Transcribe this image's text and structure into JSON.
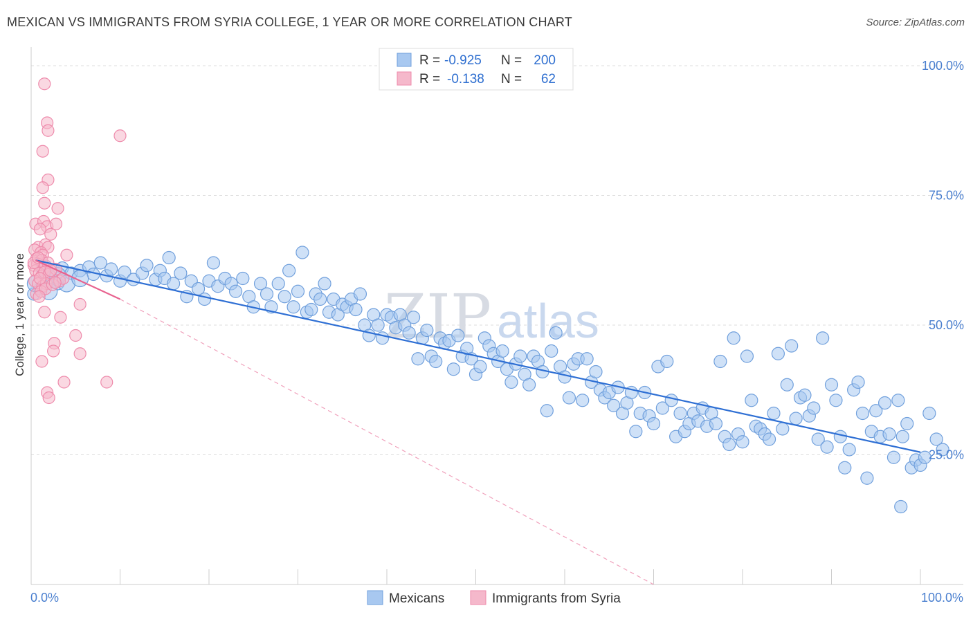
{
  "title": "MEXICAN VS IMMIGRANTS FROM SYRIA COLLEGE, 1 YEAR OR MORE CORRELATION CHART",
  "source": "Source: ZipAtlas.com",
  "watermark": {
    "zip": "ZIP",
    "atlas": "atlas"
  },
  "legend_box": {
    "rows": [
      {
        "r_label": "R =",
        "r_value": "-0.925",
        "n_label": "N =",
        "n_value": "200",
        "color": "#a8c8f0"
      },
      {
        "r_label": "R =",
        "r_value": "-0.138",
        "n_label": "N =",
        "n_value": "62",
        "color": "#f5b8cb"
      }
    ]
  },
  "bottom_legend": [
    {
      "label": "Mexicans",
      "color": "#a8c8f0"
    },
    {
      "label": "Immigrants from Syria",
      "color": "#f5b8cb"
    }
  ],
  "chart_data": {
    "type": "scatter",
    "title": "MEXICAN VS IMMIGRANTS FROM SYRIA COLLEGE, 1 YEAR OR MORE CORRELATION CHART",
    "xlabel": "",
    "ylabel": "College, 1 year or more",
    "xlim": [
      0,
      100
    ],
    "ylim": [
      0,
      102
    ],
    "x_tick_labels": [
      {
        "value": 0,
        "label": "0.0%"
      },
      {
        "value": 100,
        "label": "100.0%"
      }
    ],
    "y_tick_labels": [
      {
        "value": 25,
        "label": "25.0%"
      },
      {
        "value": 50,
        "label": "50.0%"
      },
      {
        "value": 75,
        "label": "75.0%"
      },
      {
        "value": 100,
        "label": "100.0%"
      }
    ],
    "grid": true,
    "series": [
      {
        "name": "Mexicans",
        "color": "#a8c8f0",
        "edge": "#6f9fdc",
        "line_color": "#2e6fd4",
        "trend": {
          "x": [
            0.5,
            100
          ],
          "y": [
            62.5,
            25.5
          ],
          "style": "solid"
        },
        "points": [
          [
            0.3,
            56.0
          ],
          [
            1.0,
            57.0
          ],
          [
            1.5,
            59.5
          ],
          [
            2.3,
            59.2
          ],
          [
            3.0,
            58.0
          ],
          [
            3.5,
            61.0
          ],
          [
            4.5,
            60.0
          ],
          [
            5.5,
            60.5
          ],
          [
            6.5,
            61.2
          ],
          [
            7.0,
            59.8
          ],
          [
            7.8,
            62.0
          ],
          [
            8.5,
            59.5
          ],
          [
            9.0,
            60.8
          ],
          [
            10.0,
            58.5
          ],
          [
            10.5,
            60.2
          ],
          [
            11.5,
            58.8
          ],
          [
            12.5,
            60.0
          ],
          [
            13.0,
            61.5
          ],
          [
            14.0,
            58.8
          ],
          [
            14.5,
            60.5
          ],
          [
            15.0,
            59.0
          ],
          [
            15.5,
            63.0
          ],
          [
            16.0,
            58.0
          ],
          [
            16.8,
            60.0
          ],
          [
            17.5,
            55.5
          ],
          [
            18.0,
            58.5
          ],
          [
            18.8,
            57.0
          ],
          [
            19.5,
            55.0
          ],
          [
            20.0,
            58.5
          ],
          [
            20.5,
            62.0
          ],
          [
            21.0,
            57.5
          ],
          [
            21.8,
            59.0
          ],
          [
            22.5,
            58.0
          ],
          [
            23.0,
            56.5
          ],
          [
            23.8,
            59.0
          ],
          [
            24.5,
            55.5
          ],
          [
            25.0,
            53.5
          ],
          [
            25.8,
            58.0
          ],
          [
            26.5,
            56.0
          ],
          [
            27.0,
            53.5
          ],
          [
            27.8,
            58.0
          ],
          [
            28.5,
            55.5
          ],
          [
            29.0,
            60.5
          ],
          [
            29.5,
            53.5
          ],
          [
            30.0,
            56.5
          ],
          [
            30.5,
            64.0
          ],
          [
            31.0,
            52.5
          ],
          [
            31.5,
            53.0
          ],
          [
            32.0,
            56.0
          ],
          [
            32.5,
            55.0
          ],
          [
            33.0,
            58.0
          ],
          [
            33.5,
            52.5
          ],
          [
            34.0,
            55.0
          ],
          [
            34.5,
            52.0
          ],
          [
            35.0,
            54.0
          ],
          [
            35.5,
            53.5
          ],
          [
            36.0,
            55.0
          ],
          [
            36.5,
            53.0
          ],
          [
            37.0,
            56.0
          ],
          [
            37.5,
            50.0
          ],
          [
            38.0,
            48.0
          ],
          [
            38.5,
            52.0
          ],
          [
            39.0,
            50.0
          ],
          [
            39.5,
            47.5
          ],
          [
            40.0,
            52.0
          ],
          [
            40.5,
            51.5
          ],
          [
            41.0,
            49.5
          ],
          [
            41.5,
            52.0
          ],
          [
            42.0,
            50.0
          ],
          [
            42.5,
            48.5
          ],
          [
            43.0,
            51.5
          ],
          [
            43.5,
            43.5
          ],
          [
            44.0,
            47.5
          ],
          [
            44.5,
            49.0
          ],
          [
            45.0,
            44.0
          ],
          [
            45.5,
            43.0
          ],
          [
            46.0,
            47.5
          ],
          [
            46.5,
            46.5
          ],
          [
            47.0,
            47.0
          ],
          [
            47.5,
            41.5
          ],
          [
            48.0,
            48.0
          ],
          [
            48.5,
            44.0
          ],
          [
            49.0,
            45.5
          ],
          [
            49.5,
            43.5
          ],
          [
            50.0,
            40.5
          ],
          [
            50.5,
            42.0
          ],
          [
            51.0,
            47.5
          ],
          [
            51.5,
            46.0
          ],
          [
            52.0,
            44.5
          ],
          [
            52.5,
            43.0
          ],
          [
            53.0,
            45.0
          ],
          [
            53.5,
            41.5
          ],
          [
            54.0,
            39.0
          ],
          [
            54.5,
            42.5
          ],
          [
            55.0,
            44.0
          ],
          [
            55.5,
            40.5
          ],
          [
            56.0,
            38.5
          ],
          [
            56.5,
            44.0
          ],
          [
            57.0,
            43.0
          ],
          [
            57.5,
            41.0
          ],
          [
            58.0,
            33.5
          ],
          [
            58.5,
            45.0
          ],
          [
            59.0,
            48.5
          ],
          [
            59.5,
            42.0
          ],
          [
            60.0,
            40.0
          ],
          [
            60.5,
            36.0
          ],
          [
            61.0,
            42.5
          ],
          [
            61.5,
            43.5
          ],
          [
            62.0,
            35.5
          ],
          [
            62.5,
            43.5
          ],
          [
            63.0,
            39.0
          ],
          [
            63.5,
            41.0
          ],
          [
            64.0,
            37.5
          ],
          [
            64.5,
            36.0
          ],
          [
            65.0,
            37.0
          ],
          [
            65.5,
            34.5
          ],
          [
            66.0,
            38.0
          ],
          [
            66.5,
            33.0
          ],
          [
            67.0,
            35.0
          ],
          [
            67.5,
            37.0
          ],
          [
            68.0,
            29.5
          ],
          [
            68.5,
            33.0
          ],
          [
            69.0,
            37.0
          ],
          [
            69.5,
            32.5
          ],
          [
            70.0,
            31.0
          ],
          [
            70.5,
            42.0
          ],
          [
            71.0,
            34.0
          ],
          [
            71.5,
            43.0
          ],
          [
            72.0,
            35.5
          ],
          [
            72.5,
            28.5
          ],
          [
            73.0,
            33.0
          ],
          [
            73.5,
            29.5
          ],
          [
            74.0,
            31.0
          ],
          [
            74.5,
            33.0
          ],
          [
            75.0,
            31.5
          ],
          [
            75.5,
            34.0
          ],
          [
            76.0,
            30.5
          ],
          [
            76.5,
            33.0
          ],
          [
            77.0,
            31.0
          ],
          [
            77.5,
            43.0
          ],
          [
            78.0,
            28.5
          ],
          [
            78.5,
            27.0
          ],
          [
            79.0,
            47.5
          ],
          [
            79.5,
            29.0
          ],
          [
            80.0,
            27.5
          ],
          [
            80.5,
            44.0
          ],
          [
            81.0,
            35.5
          ],
          [
            81.5,
            30.5
          ],
          [
            82.0,
            30.0
          ],
          [
            82.5,
            29.0
          ],
          [
            83.0,
            28.0
          ],
          [
            83.5,
            33.0
          ],
          [
            84.0,
            44.5
          ],
          [
            84.5,
            30.0
          ],
          [
            85.0,
            38.5
          ],
          [
            85.5,
            46.0
          ],
          [
            86.0,
            32.0
          ],
          [
            86.5,
            36.0
          ],
          [
            87.0,
            36.5
          ],
          [
            87.5,
            32.5
          ],
          [
            88.0,
            34.0
          ],
          [
            88.5,
            28.0
          ],
          [
            89.0,
            47.5
          ],
          [
            89.5,
            26.5
          ],
          [
            90.0,
            38.5
          ],
          [
            90.5,
            35.5
          ],
          [
            91.0,
            28.5
          ],
          [
            91.5,
            22.5
          ],
          [
            92.0,
            26.0
          ],
          [
            92.5,
            37.5
          ],
          [
            93.0,
            39.0
          ],
          [
            93.5,
            33.0
          ],
          [
            94.0,
            20.5
          ],
          [
            94.5,
            29.5
          ],
          [
            95.0,
            33.5
          ],
          [
            95.5,
            28.5
          ],
          [
            96.0,
            35.0
          ],
          [
            96.5,
            29.0
          ],
          [
            97.0,
            24.5
          ],
          [
            97.5,
            35.5
          ],
          [
            98.0,
            28.5
          ],
          [
            98.5,
            31.0
          ],
          [
            99.0,
            22.5
          ],
          [
            99.5,
            24.0
          ],
          [
            100.0,
            23.0
          ],
          [
            97.8,
            15.0
          ],
          [
            101.0,
            33.0
          ],
          [
            101.8,
            28.0
          ],
          [
            102.5,
            26.0
          ],
          [
            100.5,
            24.5
          ]
        ],
        "big_points": [
          [
            0.5,
            58.0
          ],
          [
            1.5,
            61.0
          ],
          [
            3.0,
            59.5
          ],
          [
            4.0,
            58.0
          ],
          [
            2.0,
            56.5
          ],
          [
            5.5,
            59.0
          ]
        ]
      },
      {
        "name": "Immigrants from Syria",
        "color": "#f5b8cb",
        "edge": "#ee8aab",
        "line_color": "#e8628f",
        "trend": {
          "x": [
            0.5,
            10.0
          ],
          "y": [
            62.5,
            55.0
          ],
          "style": "solid",
          "extend_to": [
            70.0,
            0.0
          ]
        },
        "points": [
          [
            1.5,
            96.5
          ],
          [
            1.8,
            89.0
          ],
          [
            1.9,
            87.5
          ],
          [
            10.0,
            86.5
          ],
          [
            1.3,
            83.5
          ],
          [
            1.9,
            78.0
          ],
          [
            1.3,
            76.5
          ],
          [
            1.5,
            73.5
          ],
          [
            3.0,
            72.5
          ],
          [
            0.5,
            69.5
          ],
          [
            1.4,
            70.0
          ],
          [
            1.8,
            69.0
          ],
          [
            2.8,
            69.5
          ],
          [
            2.2,
            67.5
          ],
          [
            1.0,
            68.5
          ],
          [
            0.8,
            65.0
          ],
          [
            1.6,
            65.5
          ],
          [
            1.9,
            65.0
          ],
          [
            0.4,
            64.5
          ],
          [
            1.1,
            64.0
          ],
          [
            1.3,
            63.5
          ],
          [
            0.6,
            62.8
          ],
          [
            1.2,
            62.5
          ],
          [
            4.0,
            63.5
          ],
          [
            0.3,
            61.5
          ],
          [
            0.7,
            61.8
          ],
          [
            1.4,
            61.0
          ],
          [
            1.9,
            62.0
          ],
          [
            0.5,
            60.5
          ],
          [
            0.9,
            60.0
          ],
          [
            1.2,
            59.5
          ],
          [
            1.5,
            60.2
          ],
          [
            2.0,
            59.8
          ],
          [
            2.8,
            60.8
          ],
          [
            0.4,
            58.5
          ],
          [
            0.8,
            58.0
          ],
          [
            1.3,
            57.5
          ],
          [
            1.7,
            58.0
          ],
          [
            0.6,
            56.0
          ],
          [
            1.1,
            56.5
          ],
          [
            1.6,
            57.0
          ],
          [
            2.4,
            57.8
          ],
          [
            3.2,
            58.5
          ],
          [
            5.5,
            54.0
          ],
          [
            1.5,
            52.5
          ],
          [
            3.3,
            51.5
          ],
          [
            5.0,
            48.0
          ],
          [
            2.6,
            46.5
          ],
          [
            2.5,
            45.0
          ],
          [
            5.5,
            44.5
          ],
          [
            1.2,
            43.0
          ],
          [
            8.5,
            39.0
          ],
          [
            3.7,
            39.0
          ],
          [
            1.8,
            37.0
          ],
          [
            2.0,
            36.0
          ],
          [
            0.3,
            62.0
          ],
          [
            0.8,
            63.0
          ],
          [
            1.0,
            59.0
          ],
          [
            2.2,
            60.5
          ],
          [
            3.6,
            59.0
          ],
          [
            0.9,
            55.5
          ],
          [
            2.7,
            58.2
          ]
        ]
      }
    ]
  }
}
